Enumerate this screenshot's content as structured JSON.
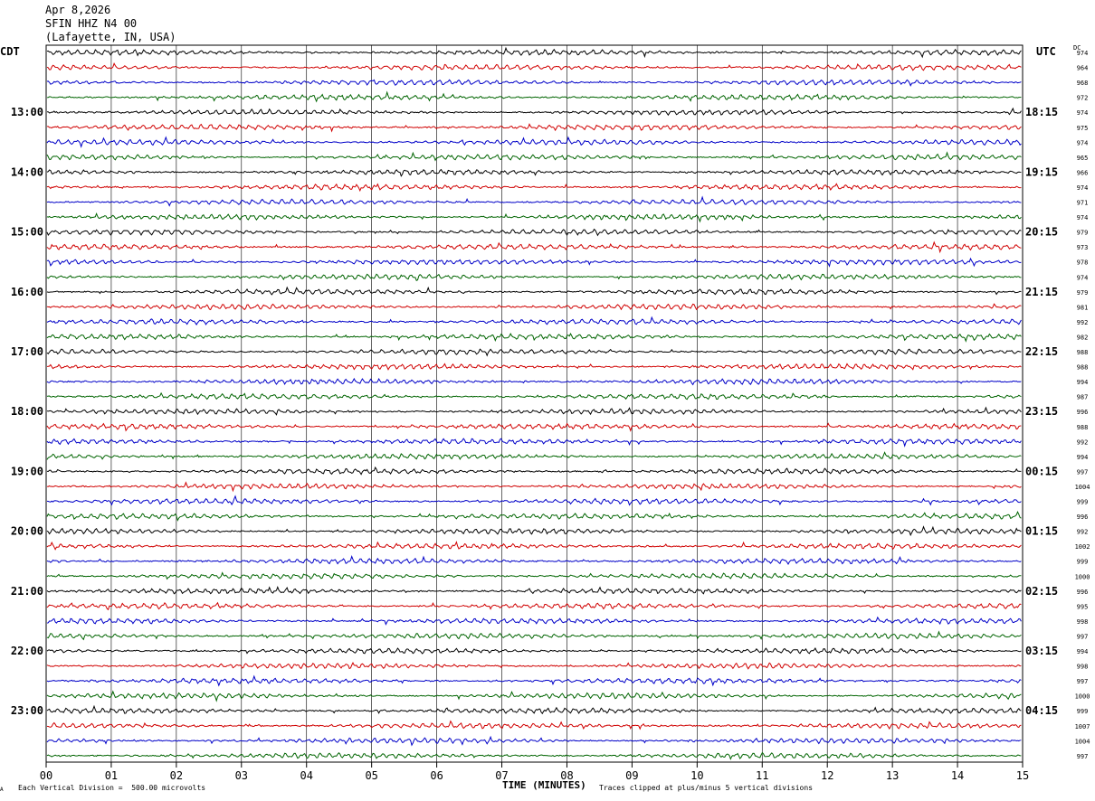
{
  "header": {
    "date": "Apr 8,2026",
    "station": "SFIN HHZ N4 00",
    "location": "(Lafayette, IN, USA)"
  },
  "labels": {
    "left_tz": "CDT",
    "right_tz": "UTC",
    "dc_label": "DC",
    "x_axis_title": "TIME (MINUTES)",
    "scale_note": "Each Vertical Division =  500.00 microvolts",
    "clip_note": "Traces clipped at plus/minus 5 vertical divisions",
    "corner_mark": "A"
  },
  "colors": {
    "trace_cycle": [
      "#000000",
      "#d00000",
      "#0000c8",
      "#006400"
    ],
    "grid": "#000000",
    "background": "#ffffff"
  },
  "chart_data": {
    "type": "line",
    "description_of_series": "helicorder rows, 15 minutes each",
    "x": {
      "label": "TIME (MINUTES)",
      "range": [
        0,
        15
      ],
      "ticks": [
        "00",
        "01",
        "02",
        "03",
        "04",
        "05",
        "06",
        "07",
        "08",
        "09",
        "10",
        "11",
        "12",
        "13",
        "14",
        "15"
      ]
    },
    "rows_per_hour": 4,
    "row_count": 48,
    "left_time_labels": [
      "13:00",
      "14:00",
      "15:00",
      "16:00",
      "17:00",
      "18:00",
      "19:00",
      "20:00",
      "21:00",
      "22:00",
      "23:00"
    ],
    "right_time_labels": [
      "18:15",
      "19:15",
      "20:15",
      "21:15",
      "22:15",
      "23:15",
      "00:15",
      "01:15",
      "02:15",
      "03:15",
      "04:15"
    ],
    "hour_label_first_row": 4,
    "dc_offsets": [
      974,
      964,
      968,
      972,
      974,
      975,
      974,
      965,
      966,
      974,
      971,
      974,
      979,
      973,
      978,
      974,
      979,
      981,
      992,
      982,
      988,
      988,
      994,
      987,
      996,
      988,
      992,
      994,
      997,
      1004,
      999,
      996,
      992,
      1002,
      999,
      1000,
      996,
      995,
      998,
      997,
      994,
      998,
      997,
      1000,
      999,
      1007,
      1004,
      997
    ],
    "scale_microvolts_per_division": 500.0,
    "clip_divisions": 5
  }
}
